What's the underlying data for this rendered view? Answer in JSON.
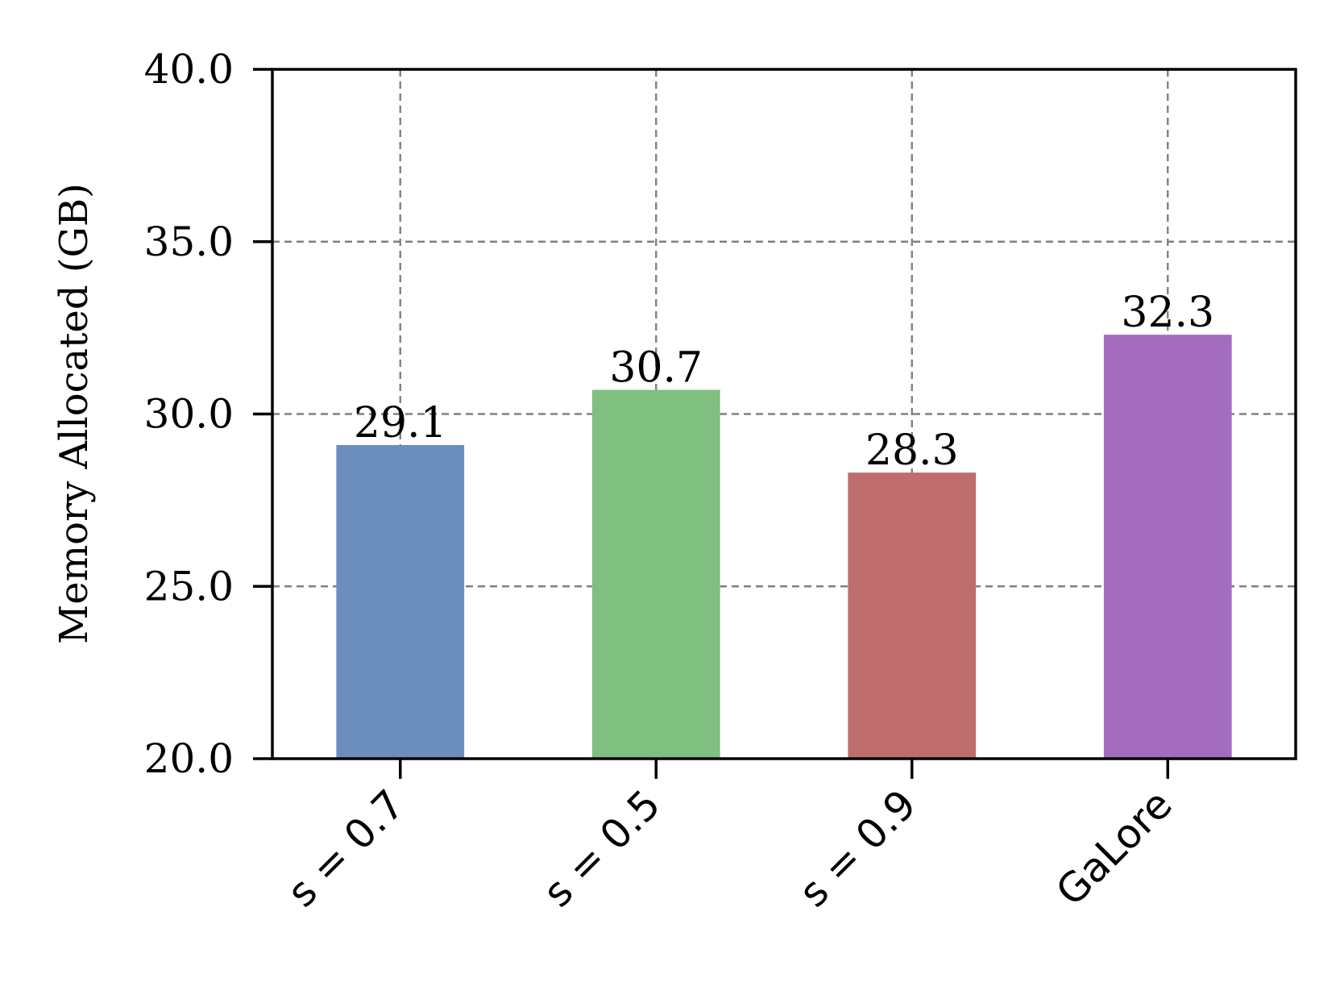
{
  "chart_data": {
    "type": "bar",
    "categories": [
      "s = 0.7",
      "s = 0.5",
      "s = 0.9",
      "GaLore"
    ],
    "values": [
      29.1,
      30.7,
      28.3,
      32.3
    ],
    "data_labels": [
      "29.1",
      "30.7",
      "28.3",
      "32.3"
    ],
    "colors": [
      "#6c8ebf",
      "#7fbf7f",
      "#bf6c6c",
      "#a36cbf"
    ],
    "title": "",
    "xlabel": "",
    "ylabel": "Memory Allocated (GB)",
    "ylim": [
      20.0,
      40.0
    ],
    "yticks": [
      "20.0",
      "25.0",
      "30.0",
      "35.0",
      "40.0"
    ],
    "ytick_values": [
      20,
      25,
      30,
      35,
      40
    ],
    "grid": true,
    "legend": "none"
  }
}
